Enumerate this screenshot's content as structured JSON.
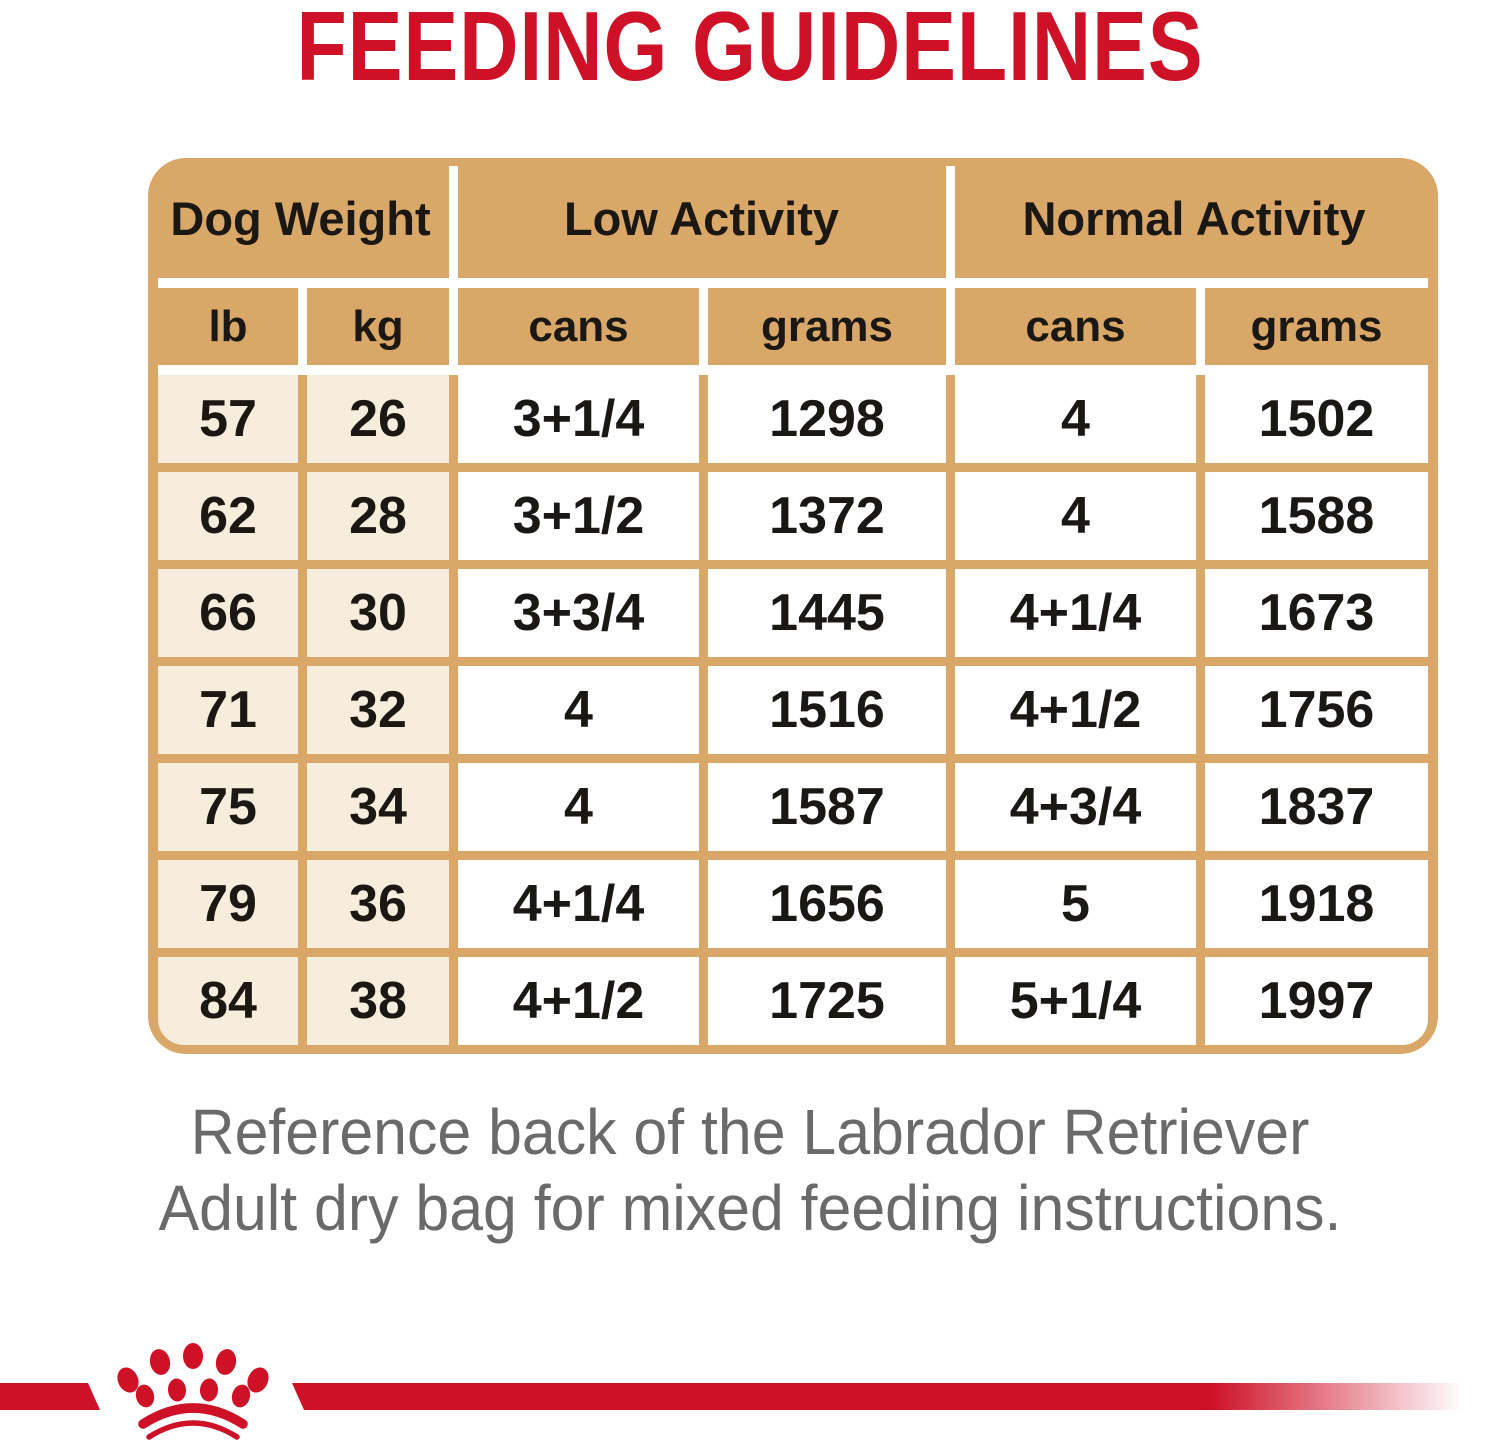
{
  "chart_data": {
    "type": "table",
    "title": "FEEDING GUIDELINES",
    "column_groups": [
      {
        "label": "Dog Weight",
        "span": 2
      },
      {
        "label": "Low Activity",
        "span": 2
      },
      {
        "label": "Normal Activity",
        "span": 2
      }
    ],
    "columns": [
      "lb",
      "kg",
      "cans",
      "grams",
      "cans",
      "grams"
    ],
    "rows": [
      [
        "57",
        "26",
        "3+1/4",
        "1298",
        "4",
        "1502"
      ],
      [
        "62",
        "28",
        "3+1/2",
        "1372",
        "4",
        "1588"
      ],
      [
        "66",
        "30",
        "3+3/4",
        "1445",
        "4+1/4",
        "1673"
      ],
      [
        "71",
        "32",
        "4",
        "1516",
        "4+1/2",
        "1756"
      ],
      [
        "75",
        "34",
        "4",
        "1587",
        "4+3/4",
        "1837"
      ],
      [
        "79",
        "36",
        "4+1/4",
        "1656",
        "5",
        "1918"
      ],
      [
        "84",
        "38",
        "4+1/2",
        "1725",
        "5+1/4",
        "1997"
      ]
    ]
  },
  "note": {
    "line1": "Reference back of the Labrador Retriever",
    "line2": "Adult dry bag for mixed feeding instructions."
  },
  "logo": {
    "name": "royal-canin-crown",
    "description": "red crown of nine dots over two arcs, set into a horizontal red stripe"
  },
  "colors": {
    "brand_red": "#CE1126",
    "table_tan": "#D9A768",
    "weight_cell_cream": "#F6EDDC",
    "note_gray": "#6A6A6A",
    "text_black": "#1B1713"
  }
}
